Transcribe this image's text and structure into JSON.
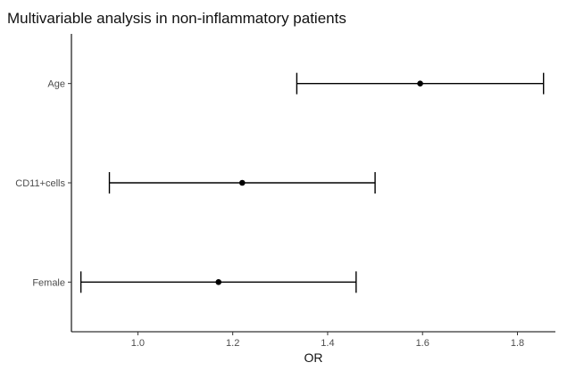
{
  "chart_data": {
    "type": "scatter",
    "subtype": "forest-plot-with-error-bars",
    "title": "Multivariable analysis in non-inflammatory patients",
    "xlabel": "OR",
    "ylabel": "",
    "xlim": [
      0.86,
      1.88
    ],
    "x_ticks": [
      1.0,
      1.2,
      1.4,
      1.6,
      1.8
    ],
    "x_tick_labels": [
      "1.0",
      "1.2",
      "1.4",
      "1.6",
      "1.8"
    ],
    "categories": [
      "Age",
      "CD11+cells",
      "Female"
    ],
    "series": [
      {
        "points": [
          {
            "label": "Age",
            "or": 1.595,
            "lower": 1.335,
            "upper": 1.855
          },
          {
            "label": "CD11+cells",
            "or": 1.22,
            "lower": 0.94,
            "upper": 1.5
          },
          {
            "label": "Female",
            "or": 1.17,
            "lower": 0.88,
            "upper": 1.46
          }
        ]
      }
    ],
    "grid": false,
    "legend": "none",
    "colors": {
      "points": "#000000",
      "error_bars": "#000000",
      "axes": "#000000",
      "tick_text": "#4d4d4d"
    }
  }
}
